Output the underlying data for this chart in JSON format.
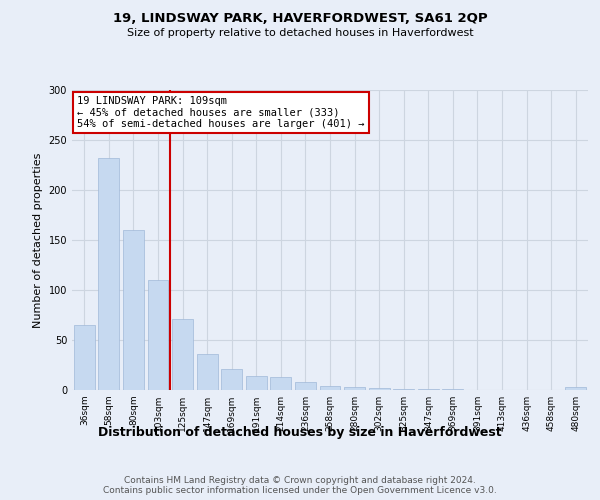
{
  "title": "19, LINDSWAY PARK, HAVERFORDWEST, SA61 2QP",
  "subtitle": "Size of property relative to detached houses in Haverfordwest",
  "xlabel": "Distribution of detached houses by size in Haverfordwest",
  "ylabel": "Number of detached properties",
  "footer_line1": "Contains HM Land Registry data © Crown copyright and database right 2024.",
  "footer_line2": "Contains public sector information licensed under the Open Government Licence v3.0.",
  "annotation_line1": "19 LINDSWAY PARK: 109sqm",
  "annotation_line2": "← 45% of detached houses are smaller (333)",
  "annotation_line3": "54% of semi-detached houses are larger (401) →",
  "categories": [
    "36sqm",
    "58sqm",
    "80sqm",
    "103sqm",
    "125sqm",
    "147sqm",
    "169sqm",
    "191sqm",
    "214sqm",
    "236sqm",
    "258sqm",
    "280sqm",
    "302sqm",
    "325sqm",
    "347sqm",
    "369sqm",
    "391sqm",
    "413sqm",
    "436sqm",
    "458sqm",
    "480sqm"
  ],
  "values": [
    65,
    232,
    160,
    110,
    71,
    36,
    21,
    14,
    13,
    8,
    4,
    3,
    2,
    1,
    1,
    1,
    0,
    0,
    0,
    0,
    3
  ],
  "bar_color": "#c6d9f0",
  "bar_edgecolor": "#a0b8d8",
  "vline_x_index": 3,
  "vline_color": "#cc0000",
  "annotation_box_edgecolor": "#cc0000",
  "annotation_box_facecolor": "white",
  "grid_color": "#cdd5e0",
  "background_color": "#e8eef8",
  "plot_background": "#e8eef8",
  "ylim": [
    0,
    300
  ],
  "yticks": [
    0,
    50,
    100,
    150,
    200,
    250,
    300
  ],
  "title_fontsize": 9.5,
  "subtitle_fontsize": 8,
  "ylabel_fontsize": 8,
  "xlabel_fontsize": 9,
  "tick_fontsize": 6.5,
  "annotation_fontsize": 7.5,
  "footer_fontsize": 6.5
}
